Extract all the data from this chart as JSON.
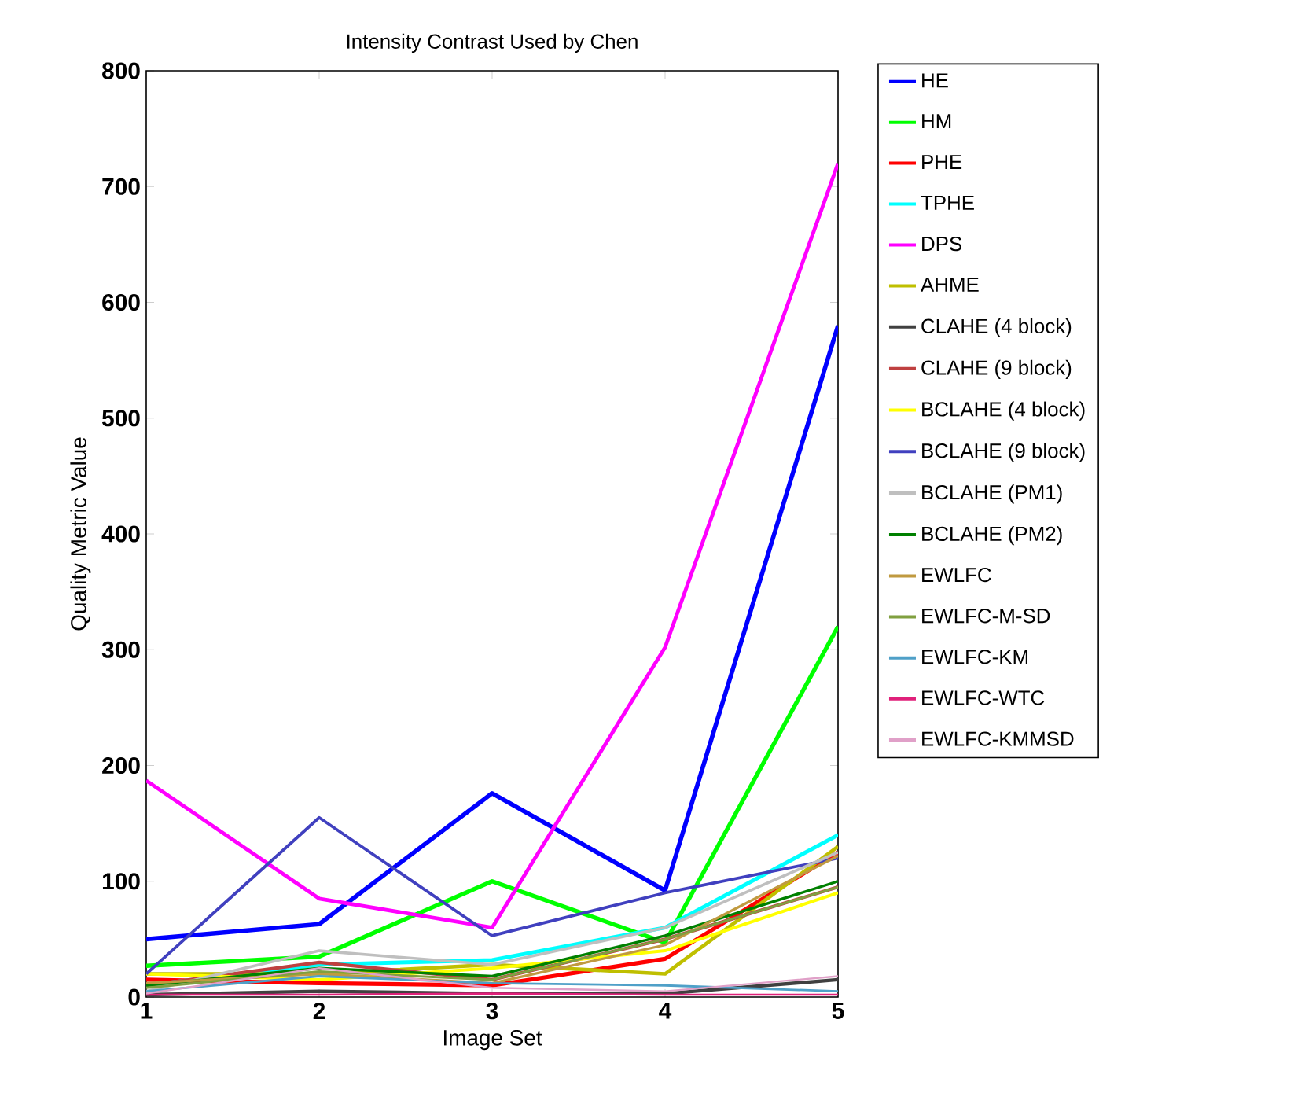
{
  "chart_data": {
    "type": "line",
    "title": "Intensity Contrast Used by Chen",
    "xlabel": "Image Set",
    "ylabel": "Quality Metric Value",
    "x": [
      1,
      2,
      3,
      4,
      5
    ],
    "xlim": [
      1,
      5
    ],
    "xticks": [
      1,
      2,
      3,
      4,
      5
    ],
    "ylim": [
      0,
      800
    ],
    "yticks": [
      0,
      100,
      200,
      300,
      400,
      500,
      600,
      700,
      800
    ],
    "grid": false,
    "legend": "right",
    "marker": "none",
    "line_style": "solid",
    "series": [
      {
        "name": "HE",
        "color": "#0000ff",
        "values": [
          50,
          63,
          176,
          92,
          580
        ]
      },
      {
        "name": "HM",
        "color": "#00ff00",
        "values": [
          27,
          35,
          100,
          47,
          320
        ]
      },
      {
        "name": "PHE",
        "color": "#ff0000",
        "values": [
          15,
          12,
          10,
          33,
          125
        ]
      },
      {
        "name": "TPHE",
        "color": "#00ffff",
        "values": [
          10,
          28,
          32,
          60,
          140
        ]
      },
      {
        "name": "DPS",
        "color": "#ff00ff",
        "values": [
          187,
          85,
          60,
          302,
          720
        ]
      },
      {
        "name": "AHME",
        "color": "#bfbf00",
        "values": [
          20,
          20,
          28,
          20,
          130
        ]
      },
      {
        "name": "CLAHE (4 block)",
        "color": "#404040",
        "values": [
          2,
          5,
          3,
          3,
          15
        ]
      },
      {
        "name": "CLAHE (9 block)",
        "color": "#bf4040",
        "values": [
          10,
          30,
          15,
          50,
          95
        ]
      },
      {
        "name": "BCLAHE (4 block)",
        "color": "#ffff00",
        "values": [
          20,
          15,
          25,
          40,
          90
        ]
      },
      {
        "name": "BCLAHE (9 block)",
        "color": "#4040bf",
        "values": [
          20,
          155,
          53,
          90,
          120
        ]
      },
      {
        "name": "BCLAHE (PM1)",
        "color": "#bfbfbf",
        "values": [
          5,
          40,
          28,
          60,
          125
        ]
      },
      {
        "name": "BCLAHE (PM2)",
        "color": "#008000",
        "values": [
          10,
          25,
          18,
          53,
          100
        ]
      },
      {
        "name": "EWLFC",
        "color": "#c09a40",
        "values": [
          12,
          20,
          12,
          45,
          122
        ]
      },
      {
        "name": "EWLFC-M-SD",
        "color": "#80a040",
        "values": [
          8,
          22,
          15,
          50,
          95
        ]
      },
      {
        "name": "EWLFC-KM",
        "color": "#4fa0c8",
        "values": [
          5,
          18,
          12,
          10,
          5
        ]
      },
      {
        "name": "EWLFC-WTC",
        "color": "#e0207a",
        "values": [
          2,
          2,
          3,
          2,
          2
        ]
      },
      {
        "name": "EWLFC-KMMSD",
        "color": "#e0a0c8",
        "values": [
          3,
          25,
          8,
          5,
          18
        ]
      }
    ]
  }
}
